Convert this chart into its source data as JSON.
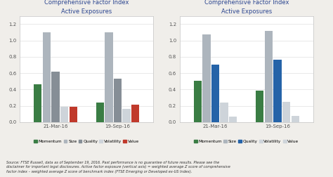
{
  "chart1": {
    "title": "FTSE Emerging\nComprehensive Factor Index\nActive Exposures",
    "dates": [
      "21-Mar-16",
      "19-Sep-16"
    ],
    "series": {
      "Momentum": [
        0.46,
        0.24
      ],
      "Size": [
        1.1,
        1.1
      ],
      "Quality": [
        0.62,
        0.53
      ],
      "Volatility": [
        0.19,
        0.16
      ],
      "Value": [
        0.19,
        0.21
      ]
    },
    "colors": {
      "Momentum": "#3a7d44",
      "Size": "#adb5bd",
      "Quality": "#868e96",
      "Volatility": "#ced4da",
      "Value": "#c0392b"
    }
  },
  "chart2": {
    "title": "FTSE Developed  ex-US\nComprehensive Factor Index\nActive Exposures",
    "dates": [
      "21-Mar-16",
      "19-Sep-16"
    ],
    "series": {
      "Momentum": [
        0.51,
        0.39
      ],
      "Size": [
        1.07,
        1.12
      ],
      "Quality": [
        0.7,
        0.76
      ],
      "Volatility": [
        0.24,
        0.25
      ],
      "Value": [
        0.07,
        0.08
      ]
    },
    "colors": {
      "Momentum": "#3a7d44",
      "Size": "#adb5bd",
      "Quality": "#2563a8",
      "Volatility": "#ced4da",
      "Value": "#ced4da"
    }
  },
  "legend_labels": [
    "Momentum",
    "Size",
    "Quality",
    "Volatility",
    "Value"
  ],
  "ylim": [
    0,
    1.3
  ],
  "yticks": [
    0,
    0.2,
    0.4,
    0.6,
    0.8,
    1.0,
    1.2
  ],
  "footnote": "Source: FTSE Russell, data as of September 19, 2016. Past performance is no guarantee of future results. Please see the\ndisclaimer for important legal disclosures. Active factor exposure (vertical axis) = weighted average Z score of comprehensive\nfactor index – weighted average Z score of benchmark index (FTSE Emerging or Developed ex-US Index).",
  "bg_color": "#f0eeea",
  "panel_bg": "#ffffff",
  "border_color": "#cccccc",
  "title_color": "#2b4590",
  "grid_color": "#e0e0e0",
  "tick_color": "#555555"
}
